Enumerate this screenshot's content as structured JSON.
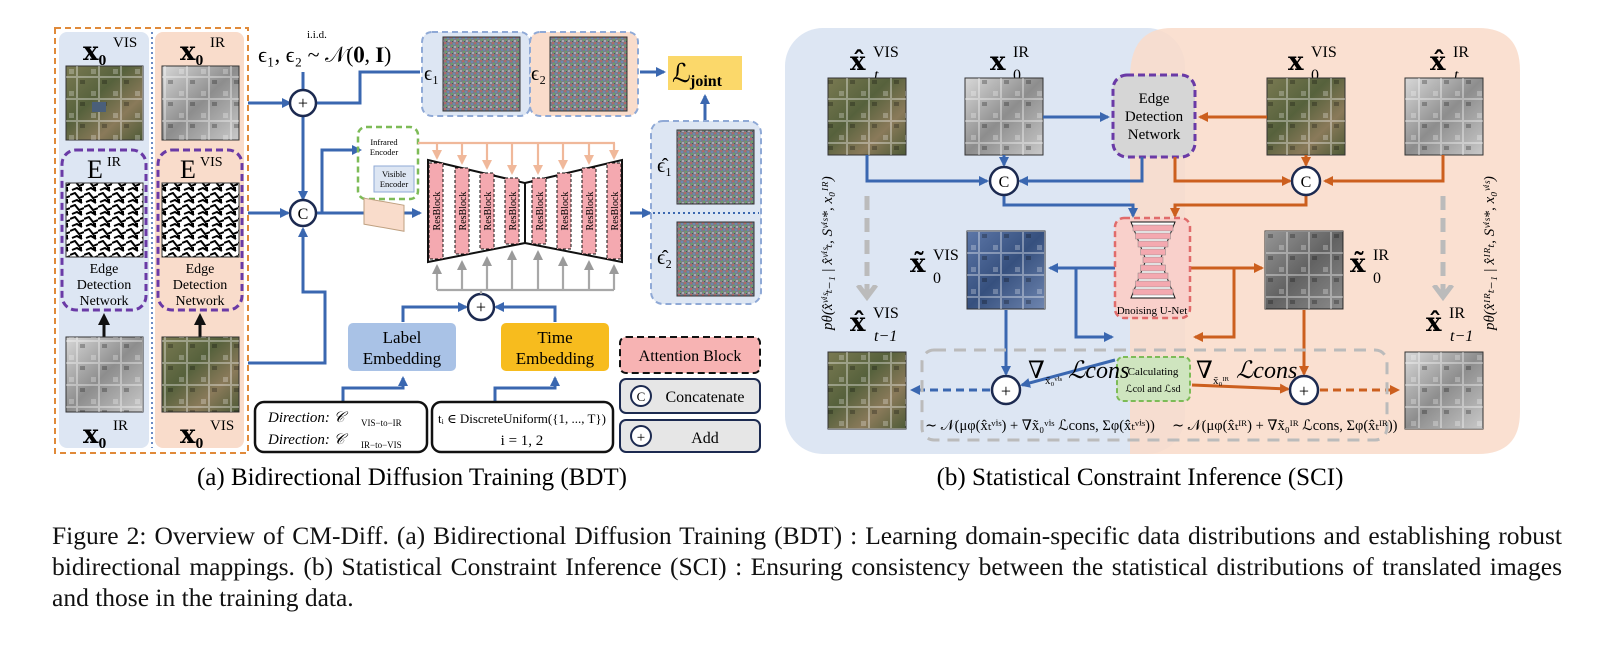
{
  "panel_a": {
    "caption": "(a) Bidirectional Diffusion Training (BDT)",
    "iid_label": "i.i.d.",
    "noise_expr": "ϵ₁, ϵ₂ ~ 𝒩(𝟎, 𝐈)",
    "eps1": "ϵ₁",
    "eps2": "ϵ₂",
    "eps1_hat": "ϵ̂₁",
    "eps2_hat": "ϵ̂₂",
    "loss": "ℒ",
    "loss_sub": "joint",
    "x0_vis": "𝐱₀",
    "x0_ir": "𝐱₀",
    "sup_vis": "VIS",
    "sup_ir": "IR",
    "e_ir": "E",
    "e_vis": "E",
    "edge_net": [
      "Edge",
      "Detection",
      "Network"
    ],
    "infrared_encoder": [
      "Infrared",
      "Encoder"
    ],
    "visible_encoder": [
      "Visible",
      "Encoder"
    ],
    "resblock": "ResBlock",
    "concat_symbol": "C",
    "label_embedding": [
      "Label",
      "Embedding"
    ],
    "time_embedding": [
      "Time",
      "Embedding"
    ],
    "direction_1": "Direction: 𝒞",
    "direction_1_sub": "VIS−to−IR",
    "direction_2": "Direction: 𝒞",
    "direction_2_sub": "IR−to−VIS",
    "time_sample": "tᵢ ∈ DiscreteUniform({1, ..., T})",
    "time_index": "i = 1, 2",
    "legend": {
      "attention": "Attention Block",
      "concat": "Concatenate",
      "add": "Add"
    }
  },
  "panel_b": {
    "caption": "(b) Statistical Constraint Inference (SCI)",
    "xt_vis_hat": "𝐱̂",
    "x0_ir": "𝐱",
    "x0_vis": "𝐱",
    "xt_ir_hat": "𝐱̂",
    "x0_vis_tilde": "𝐱̃",
    "x0_ir_tilde": "𝐱̃",
    "xtm1_vis_hat": "𝐱̂",
    "xtm1_ir_hat": "𝐱̂",
    "sub_t": "t",
    "sub_0": "0",
    "sub_tm1": "t−1",
    "sup_vis": "VIS",
    "sup_ir": "IR",
    "edge_net": [
      "Edge",
      "Detection",
      "Network"
    ],
    "unet": "Dnoising U-Net",
    "calc": [
      "Calculating",
      "ℒcol  and  ℒsd"
    ],
    "grad_vis": "∇",
    "grad_vis_sub": "x̃₀ᵛⁱˢ",
    "grad_ir": "∇",
    "grad_ir_sub": "x̃₀ᴵᴿ",
    "l_cons": "ℒcons",
    "dist_vis": "∼ 𝒩(μφ(x̂ₜᵛⁱˢ) + ∇x̃₀ᵛⁱˢ ℒcons, Σφ(x̂ₜᵛⁱˢ))",
    "dist_ir": "∼ 𝒩(μφ(x̂ₜᴵᴿ) + ∇x̃₀ᴵᴿ ℒcons, Σφ(x̂ₜᴵᴿ))",
    "p_vis": "pθ(x̂ᵛⁱˢₜ₋₁ | x̂ᵛⁱˢₜ, Sᵛⁱˢ*, x₀ᴵᴿ)",
    "p_ir": "pθ(x̂ᴵᴿₜ₋₁ | x̂ᴵᴿₜ, Sᵛⁱˢ*, x₀ᵛⁱˢ)"
  },
  "caption": "Figure 2: Overview of CM-Diff. (a) Bidirectional Diffusion Training (BDT) : Learning domain-specific data distributions and establishing robust bidirectional mappings. (b) Statistical Constraint Inference (SCI) : Ensuring consistency between the statistical distributions of translated images and those in the training data.",
  "colors": {
    "blue_arrow": "#3a67b0",
    "orange_arrow": "#cc5f1e",
    "purple_dash": "#6a3aa6",
    "green_dash": "#7dbb57",
    "orange_dash": "#e08a3a",
    "red_dash": "#e06b6b",
    "blue_bg": "#dde6f3",
    "orange_bg": "#f9dccb",
    "label_emb": "#a9c2e6",
    "time_emb": "#f7bc1e",
    "loss_bg": "#fbd86a",
    "attention": "#f7b3b3",
    "resblock": "#f4a9b0"
  }
}
